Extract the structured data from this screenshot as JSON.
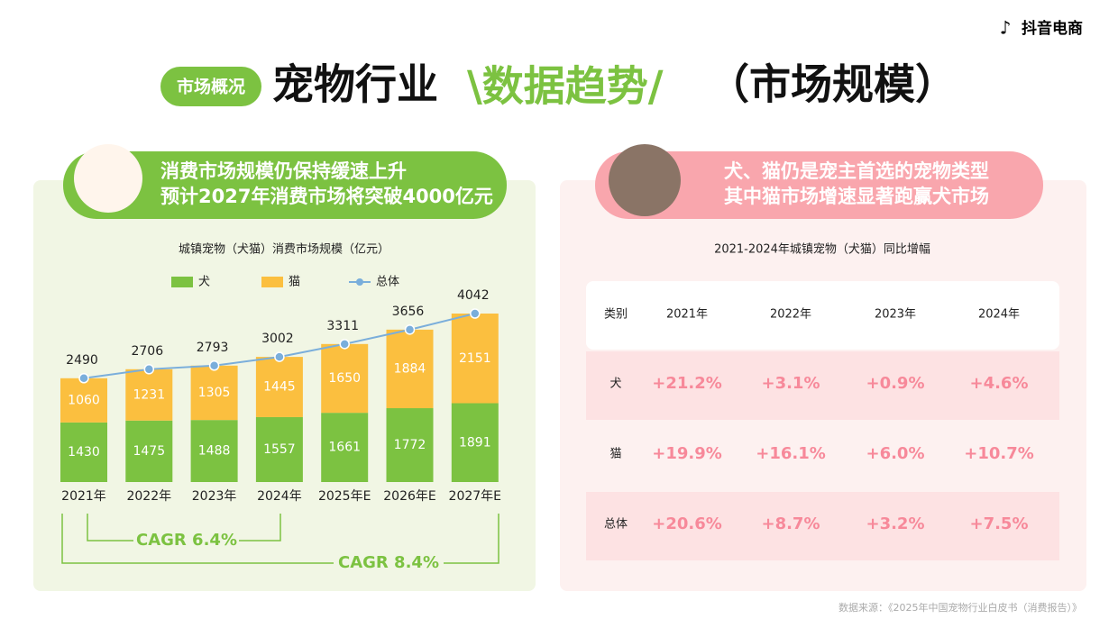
{
  "brand": "抖音电商",
  "header": {
    "tag": "市场概况",
    "title": "宠物行业",
    "highlight": "\\数据趋势/",
    "subtitle": "（市场规模）"
  },
  "left_banner": {
    "lines": [
      "消费市场规模仍保持缓速上升",
      "预计2027年消费市场将突破4000亿元"
    ]
  },
  "chart_data": {
    "type": "bar",
    "stacked": true,
    "title": "城镇宠物（犬猫）消费市场规模（亿元）",
    "categories": [
      "2021年",
      "2022年",
      "2023年",
      "2024年",
      "2025年E",
      "2026年E",
      "2027年E"
    ],
    "series": [
      {
        "name": "犬",
        "color": "#7cc241",
        "values": [
          1430,
          1475,
          1488,
          1557,
          1661,
          1772,
          1891
        ]
      },
      {
        "name": "猫",
        "color": "#fbbf3f",
        "values": [
          1060,
          1231,
          1305,
          1445,
          1650,
          1884,
          2151
        ]
      },
      {
        "name": "总体",
        "type": "line",
        "color": "#7aaedb",
        "values": [
          2490,
          2706,
          2793,
          3002,
          3311,
          3656,
          4042
        ]
      }
    ],
    "annotations": [
      "CAGR 6.4%",
      "CAGR 8.4%"
    ]
  },
  "right_banner": {
    "lines": [
      "犬、猫仍是宠主首选的宠物类型",
      "其中猫市场增速显著跑赢犬市场"
    ]
  },
  "table": {
    "title": "2021-2024年城镇宠物（犬猫）同比增幅",
    "header": [
      "类别",
      "2021年",
      "2022年",
      "2023年",
      "2024年"
    ],
    "rows": [
      [
        "犬",
        "+21.2%",
        "+3.1%",
        "+0.9%",
        "+4.6%"
      ],
      [
        "猫",
        "+19.9%",
        "+16.1%",
        "+6.0%",
        "+10.7%"
      ],
      [
        "总体",
        "+20.6%",
        "+8.7%",
        "+3.2%",
        "+7.5%"
      ]
    ]
  },
  "source": "数据来源：《2025年中国宠物行业白皮书（消费报告）》"
}
